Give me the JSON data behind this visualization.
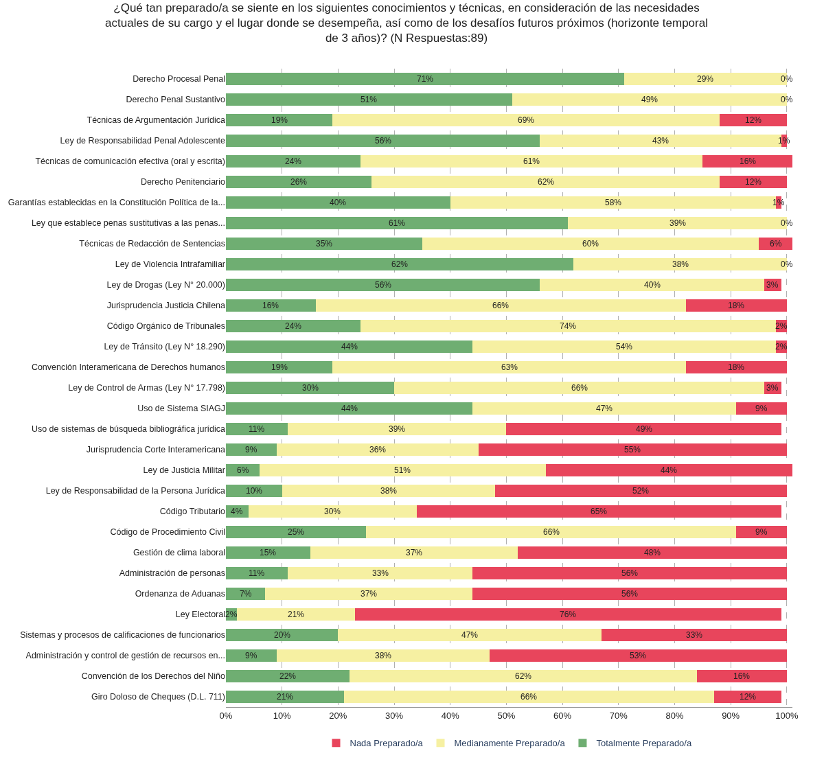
{
  "chart_data": {
    "type": "bar",
    "orientation": "horizontal",
    "stacked": true,
    "title": "¿Qué tan preparado/a se siente en los siguientes conocimientos y técnicas, en consideración de las necesidades actuales de su cargo y el lugar donde se desempeña, así como de los desafíos futuros próximos (horizonte temporal de 3 años)? (N Respuestas:89)",
    "categories": [
      "Derecho Procesal Penal",
      "Derecho Penal Sustantivo",
      "Técnicas de Argumentación Jurídica",
      "Ley de Responsabilidad Penal Adolescente",
      "Técnicas de comunicación efectiva (oral y escrita)",
      "Derecho Penitenciario",
      "Garantías establecidas en la Constitución Política de la...",
      "Ley que establece penas sustitutivas a las penas...",
      "Técnicas de Redacción de Sentencias",
      "Ley de Violencia Intrafamiliar",
      "Ley de Drogas (Ley N° 20.000)",
      "Jurisprudencia Justicia Chilena",
      "Código Orgánico de Tribunales",
      "Ley de Tránsito (Ley N° 18.290)",
      "Convención Interamericana de Derechos humanos",
      "Ley de Control de Armas (Ley N° 17.798)",
      "Uso de Sistema SIAGJ",
      "Uso de sistemas de búsqueda bibliográfica jurídica",
      "Jurisprudencia Corte Interamericana",
      "Ley de Justicia Militar",
      "Ley de Responsabilidad de la Persona Jurídica",
      "Código Tributario",
      "Código de Procedimiento Civil",
      "Gestión de clima laboral",
      "Administración de personas",
      "Ordenanza de Aduanas",
      "Ley Electoral",
      "Sistemas y procesos de calificaciones de funcionarios",
      "Administración y control de gestión de recursos en...",
      "Convención de los Derechos del Niño",
      "Giro Doloso de Cheques (D.L. 711)"
    ],
    "series": [
      {
        "name": "Totalmente Preparado/a",
        "color": "#6fae72",
        "values": [
          71,
          51,
          19,
          56,
          24,
          26,
          40,
          61,
          35,
          62,
          56,
          16,
          24,
          44,
          19,
          30,
          44,
          11,
          9,
          6,
          10,
          4,
          25,
          15,
          11,
          7,
          2,
          20,
          9,
          22,
          21
        ],
        "value_labels": [
          "71%",
          "51%",
          "19%",
          "56%",
          "24%",
          "26%",
          "40%",
          "61%",
          "35%",
          "62%",
          "56%",
          "16%",
          "24%",
          "44%",
          "19%",
          "30%",
          "44%",
          "11%",
          "9%",
          "6%",
          "10%",
          "4%",
          "25%",
          "15%",
          "11%",
          "7%",
          "2%",
          "20%",
          "9%",
          "22%",
          "21%"
        ]
      },
      {
        "name": "Medianamente Preparado/a",
        "color": "#f6f0a2",
        "values": [
          29,
          49,
          69,
          43,
          61,
          62,
          58,
          39,
          60,
          38,
          40,
          66,
          74,
          54,
          63,
          66,
          47,
          39,
          36,
          51,
          38,
          30,
          66,
          37,
          33,
          37,
          21,
          47,
          38,
          62,
          66
        ],
        "value_labels": [
          "29%",
          "49%",
          "69%",
          "43%",
          "61%",
          "62%",
          "58%",
          "39%",
          "60%",
          "38%",
          "40%",
          "66%",
          "74%",
          "54%",
          "63%",
          "66%",
          "47%",
          "39%",
          "36%",
          "51%",
          "38%",
          "30%",
          "66%",
          "37%",
          "33%",
          "37%",
          "21%",
          "47%",
          "38%",
          "62%",
          "66%"
        ]
      },
      {
        "name": "Nada Preparado/a",
        "color": "#e8455c",
        "values": [
          0,
          0,
          12,
          1,
          16,
          12,
          1,
          0,
          6,
          0,
          3,
          18,
          2,
          2,
          18,
          3,
          9,
          49,
          55,
          44,
          52,
          65,
          9,
          48,
          56,
          56,
          76,
          33,
          53,
          16,
          12
        ],
        "value_labels": [
          "0%",
          "0%",
          "12%",
          "1%",
          "16%",
          "12%",
          "1%",
          "0%",
          "6%",
          "0%",
          "3%",
          "18%",
          "2%",
          "2%",
          "18%",
          "3%",
          "9%",
          "49%",
          "55%",
          "44%",
          "52%",
          "65%",
          "9%",
          "48%",
          "56%",
          "56%",
          "76%",
          "33%",
          "53%",
          "16%",
          "12%"
        ]
      }
    ],
    "xlim": [
      0,
      101
    ],
    "xticks": [
      {
        "value": 0,
        "label": "0%"
      },
      {
        "value": 10,
        "label": "10%"
      },
      {
        "value": 20,
        "label": "20%"
      },
      {
        "value": 30,
        "label": "30%"
      },
      {
        "value": 40,
        "label": "40%"
      },
      {
        "value": 50,
        "label": "50%"
      },
      {
        "value": 60,
        "label": "60%"
      },
      {
        "value": 70,
        "label": "70%"
      },
      {
        "value": 80,
        "label": "80%"
      },
      {
        "value": 90,
        "label": "90%"
      },
      {
        "value": 100,
        "label": "100%"
      }
    ],
    "grid": "x",
    "legend": "bottom"
  }
}
